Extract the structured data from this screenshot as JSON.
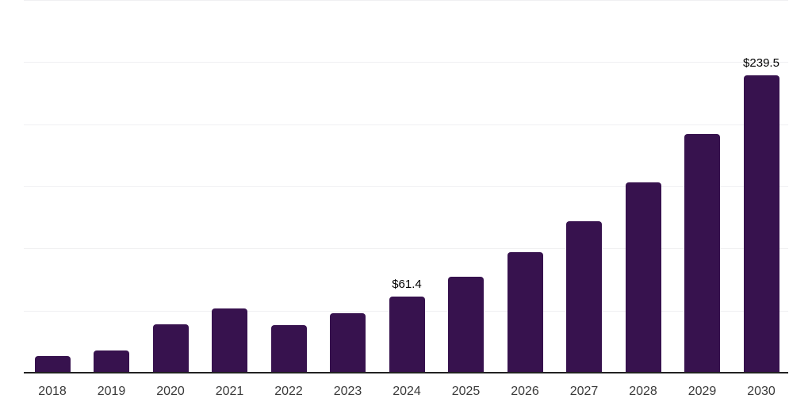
{
  "chart_data": {
    "type": "bar",
    "title": "",
    "xlabel": "",
    "ylabel": "",
    "categories": [
      "2018",
      "2019",
      "2020",
      "2021",
      "2022",
      "2023",
      "2024",
      "2025",
      "2026",
      "2027",
      "2028",
      "2029",
      "2030"
    ],
    "values": [
      13.5,
      18,
      39,
      52,
      38,
      48,
      61.4,
      77,
      97,
      122,
      153.5,
      192,
      239.5
    ],
    "value_labels": {
      "2024": "$61.4",
      "2030": "$239.5"
    },
    "ylim": [
      0,
      300
    ],
    "gridline_interval": 50,
    "grid": "horizontal-only",
    "legend": "none",
    "y_axis_ticks_visible": false,
    "colors": {
      "bar": "#37124E",
      "axis_line": "#222222",
      "gridline": "#f0f0f2",
      "tick_label": "#3a3a3a",
      "value_label": "#000000",
      "background": "#ffffff"
    }
  }
}
